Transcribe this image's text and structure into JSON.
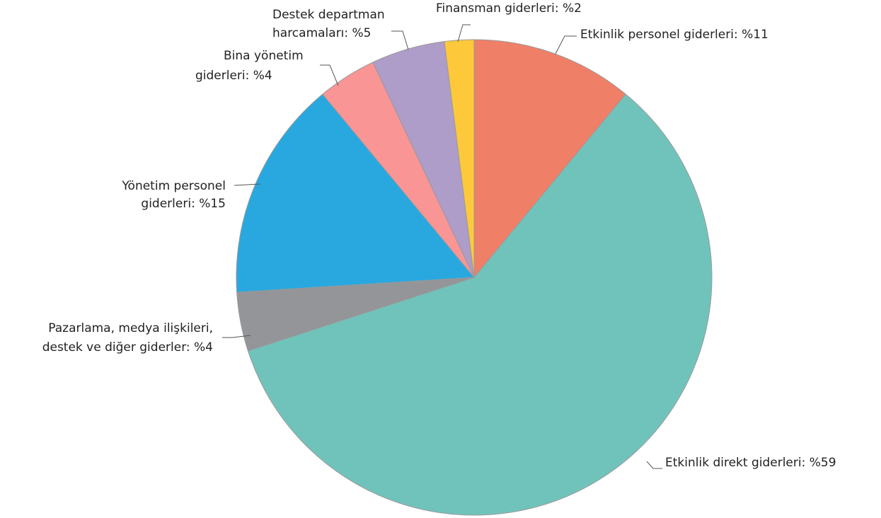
{
  "chart_data": {
    "type": "pie",
    "title": "",
    "slices": [
      {
        "label": [
          "Etkinlik personel giderleri: %11"
        ],
        "value": 11,
        "color": "#f07f67"
      },
      {
        "label": [
          "Etkinlik direkt giderleri: %59"
        ],
        "value": 59,
        "color": "#70c3bb"
      },
      {
        "label": [
          "Pazarlama, medya ilişkileri,",
          "destek ve diğer giderler: %4"
        ],
        "value": 4,
        "color": "#939598"
      },
      {
        "label": [
          "Yönetim personel",
          "giderleri: %15"
        ],
        "value": 15,
        "color": "#29a8e0"
      },
      {
        "label": [
          "Bina yönetim",
          "giderleri: %4"
        ],
        "value": 4,
        "color": "#f99595"
      },
      {
        "label": [
          "Destek departman",
          "harcamaları: %5"
        ],
        "value": 5,
        "color": "#ae9cc9"
      },
      {
        "label": [
          "Finansman giderleri: %2"
        ],
        "value": 2,
        "color": "#fdc93a"
      }
    ]
  }
}
